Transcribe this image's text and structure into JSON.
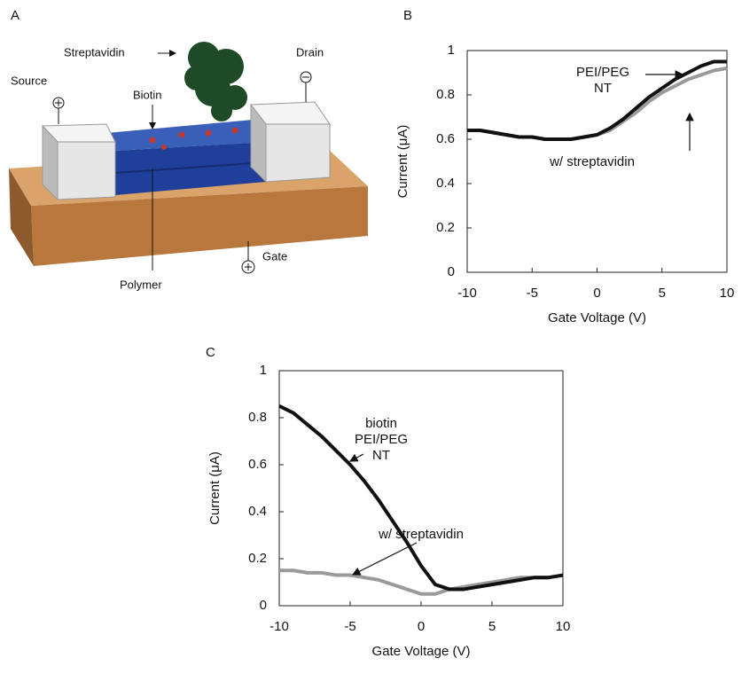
{
  "panels": [
    "A",
    "B",
    "C"
  ],
  "diagram": {
    "labels": {
      "streptavidin": "Streptavidin",
      "source": "Source",
      "drain": "Drain",
      "biotin": "Biotin",
      "gate": "Gate",
      "polymer": "Polymer"
    }
  },
  "chart_data": [
    {
      "type": "line",
      "x_label": "Gate Voltage (V)",
      "y_label": "Current (μA)",
      "x": [
        -10,
        -9,
        -8,
        -7,
        -6,
        -5,
        -4,
        -3,
        -2,
        -1,
        0,
        1,
        2,
        3,
        4,
        5,
        6,
        7,
        8,
        9,
        10
      ],
      "series": [
        {
          "color": "#111111",
          "values": [
            0.64,
            0.64,
            0.63,
            0.62,
            0.61,
            0.61,
            0.6,
            0.6,
            0.6,
            0.61,
            0.62,
            0.65,
            0.69,
            0.74,
            0.79,
            0.83,
            0.87,
            0.9,
            0.93,
            0.95,
            0.95
          ]
        },
        {
          "color": "#9a9a9a",
          "values": [
            0.64,
            0.64,
            0.63,
            0.62,
            0.61,
            0.61,
            0.6,
            0.6,
            0.6,
            0.61,
            0.62,
            0.64,
            0.68,
            0.72,
            0.77,
            0.81,
            0.84,
            0.87,
            0.89,
            0.91,
            0.92
          ]
        }
      ],
      "annotations": [
        [
          "PEI/PEG",
          "NT"
        ],
        [
          "w/ streptavidin"
        ]
      ],
      "xlim": [
        -10,
        10
      ],
      "xticks": [
        -10,
        -5,
        0,
        5,
        10
      ],
      "ylim": [
        0,
        1
      ],
      "yticks": [
        0,
        0.2,
        0.4,
        0.6,
        0.8,
        1
      ]
    },
    {
      "type": "line",
      "x_label": "Gate Voltage (V)",
      "y_label": "Current (μA)",
      "x": [
        -10,
        -9,
        -8,
        -7,
        -6,
        -5,
        -4,
        -3,
        -2,
        -1,
        0,
        1,
        2,
        3,
        4,
        5,
        6,
        7,
        8,
        9,
        10
      ],
      "series": [
        {
          "color": "#111111",
          "values": [
            0.85,
            0.82,
            0.77,
            0.72,
            0.66,
            0.6,
            0.53,
            0.45,
            0.36,
            0.27,
            0.17,
            0.09,
            0.07,
            0.07,
            0.08,
            0.09,
            0.1,
            0.11,
            0.12,
            0.12,
            0.13
          ]
        },
        {
          "color": "#9a9a9a",
          "values": [
            0.15,
            0.15,
            0.14,
            0.14,
            0.13,
            0.13,
            0.12,
            0.11,
            0.09,
            0.07,
            0.05,
            0.05,
            0.07,
            0.08,
            0.09,
            0.1,
            0.11,
            0.12,
            0.12,
            0.12,
            0.13
          ]
        }
      ],
      "annotations": [
        [
          "biotin",
          "PEI/PEG",
          "NT"
        ],
        [
          "w/ streptavidin"
        ]
      ],
      "xlim": [
        -10,
        10
      ],
      "xticks": [
        -10,
        -5,
        0,
        5,
        10
      ],
      "ylim": [
        0,
        1
      ],
      "yticks": [
        0,
        0.2,
        0.4,
        0.6,
        0.8,
        1
      ]
    }
  ]
}
